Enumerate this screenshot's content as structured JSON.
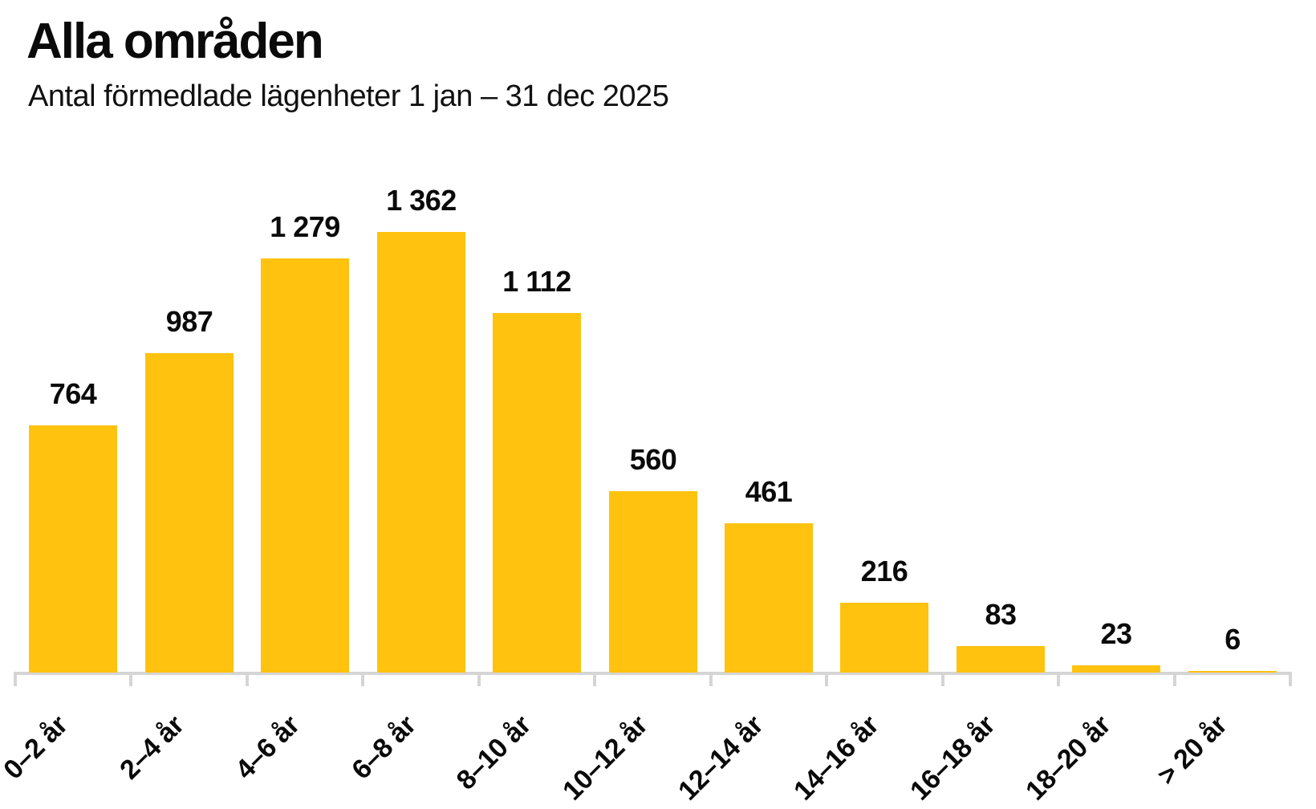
{
  "header": {
    "title": "Alla områden",
    "subtitle": "Antal förmedlade lägenheter 1 jan – 31 dec 2025"
  },
  "chart_data": {
    "type": "bar",
    "title": "Alla områden",
    "subtitle": "Antal förmedlade lägenheter 1 jan – 31 dec 2025",
    "categories": [
      "0–2 år",
      "2–4 år",
      "4–6 år",
      "6–8 år",
      "8–10 år",
      "10–12 år",
      "12–14 år",
      "14–16 år",
      "16–18 år",
      "18–20 år",
      "> 20 år"
    ],
    "values": [
      764,
      987,
      1279,
      1362,
      1112,
      560,
      461,
      216,
      83,
      23,
      6
    ],
    "value_labels": [
      "764",
      "987",
      "1 279",
      "1 362",
      "1 112",
      "560",
      "461",
      "216",
      "83",
      "23",
      "6"
    ],
    "xlabel": "",
    "ylabel": "",
    "ylim": [
      0,
      1400
    ],
    "grid": false,
    "legend_position": "none",
    "bar_color": "#ffc20e",
    "axis_color": "#d5d5d5",
    "text_color": "#0a0a0a"
  }
}
